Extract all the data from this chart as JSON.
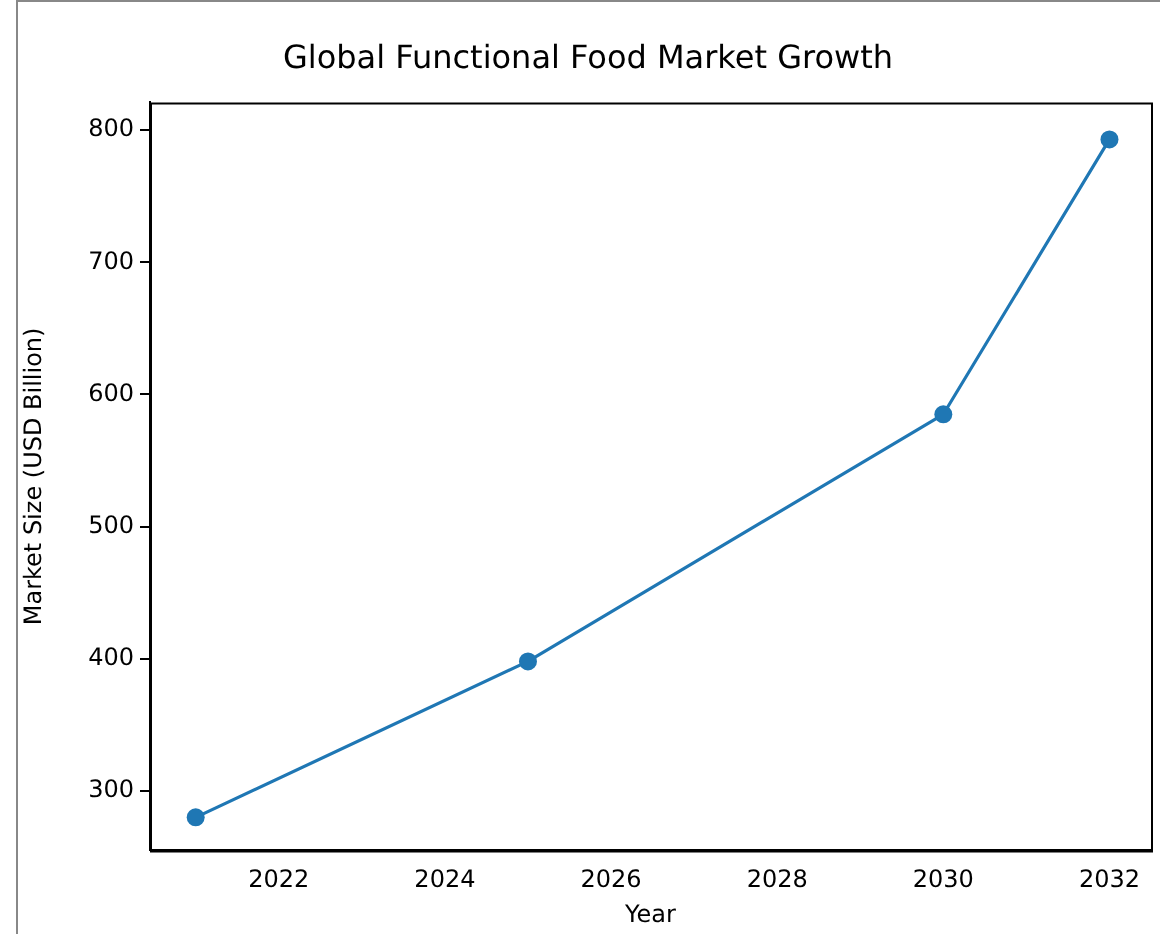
{
  "chart_data": {
    "type": "line",
    "title": "Global Functional Food Market Growth",
    "xlabel": "Year",
    "ylabel": "Market Size (USD Billion)",
    "x": [
      2021,
      2025,
      2030,
      2032
    ],
    "series": [
      {
        "color": "#1f77b4",
        "values": [
          280,
          398,
          585,
          793
        ]
      }
    ],
    "xlim": [
      2020.45,
      2032.5
    ],
    "xticks": [
      2022,
      2024,
      2026,
      2028,
      2030,
      2032
    ],
    "ylim": [
      255,
      821
    ],
    "yticks": [
      300,
      400,
      500,
      600,
      700,
      800
    ],
    "grid": false,
    "legend": false,
    "marker": "circle",
    "line_style": "solid"
  }
}
